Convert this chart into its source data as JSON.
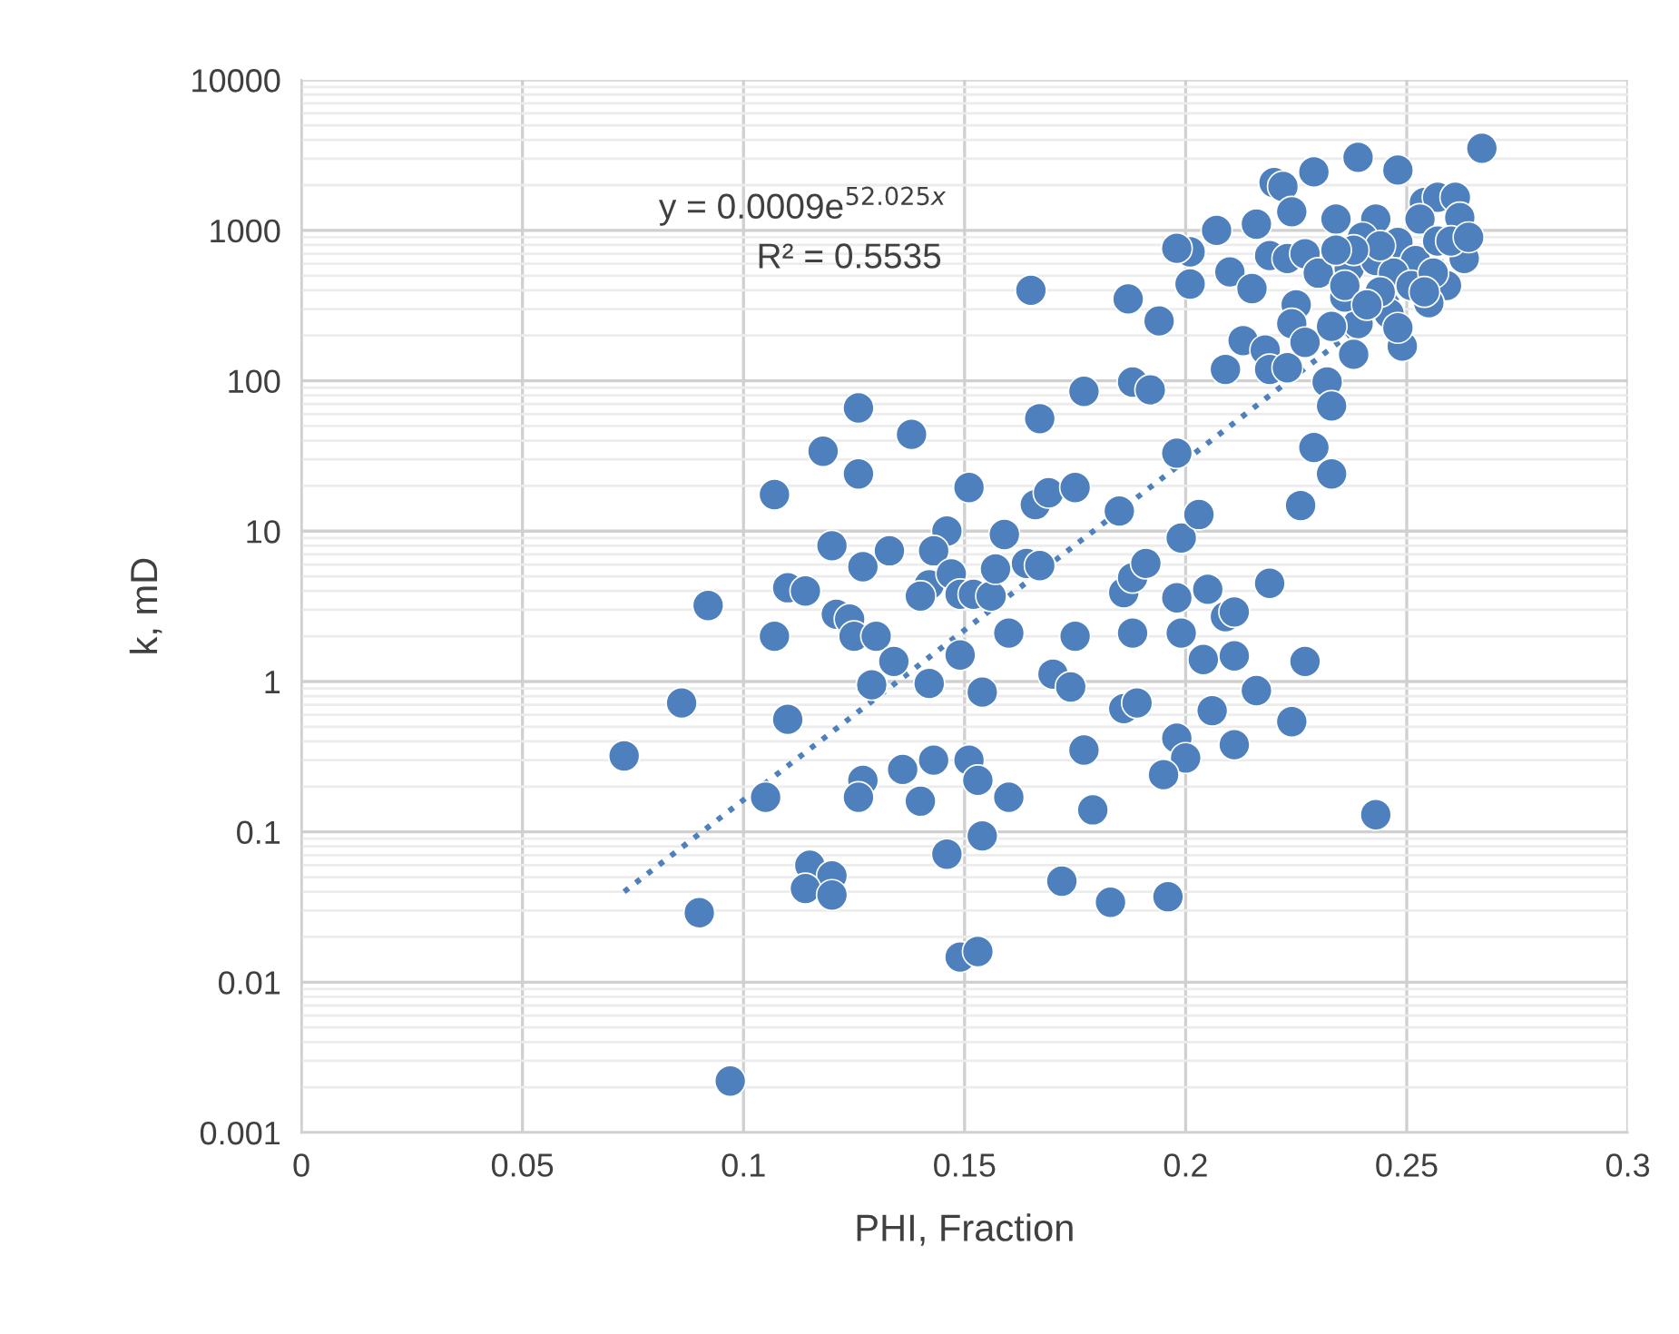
{
  "chart_data": {
    "type": "scatter",
    "xlabel": "PHI, Fraction",
    "ylabel": "k, mD",
    "annotations": [
      "y = 0.0009e$^{52.025x}$",
      "R² = 0.5535"
    ],
    "log": "y",
    "grid": true,
    "legend": false,
    "marker": "circle",
    "xlim": [
      0,
      0.3
    ],
    "xticks": [
      0,
      0.05,
      0.1,
      0.15,
      0.2,
      0.25,
      0.3
    ],
    "ylim": [
      0.001,
      10000
    ],
    "yticks": [
      0.001,
      0.01,
      0.1,
      1,
      10,
      100,
      1000,
      10000
    ],
    "series": [
      {
        "color": "#4e80bd",
        "x": [
          0.073,
          0.086,
          0.092,
          0.09,
          0.097,
          0.107,
          0.107,
          0.11,
          0.114,
          0.11,
          0.105,
          0.118,
          0.126,
          0.126,
          0.12,
          0.127,
          0.133,
          0.121,
          0.124,
          0.125,
          0.13,
          0.134,
          0.129,
          0.142,
          0.127,
          0.126,
          0.136,
          0.143,
          0.14,
          0.151,
          0.153,
          0.16,
          0.154,
          0.146,
          0.115,
          0.12,
          0.114,
          0.12,
          0.149,
          0.153,
          0.138,
          0.151,
          0.146,
          0.143,
          0.142,
          0.14,
          0.147,
          0.149,
          0.152,
          0.156,
          0.157,
          0.159,
          0.16,
          0.149,
          0.154,
          0.164,
          0.167,
          0.166,
          0.169,
          0.175,
          0.167,
          0.177,
          0.165,
          0.175,
          0.17,
          0.174,
          0.177,
          0.179,
          0.172,
          0.183,
          0.185,
          0.186,
          0.188,
          0.191,
          0.186,
          0.189,
          0.188,
          0.187,
          0.188,
          0.192,
          0.194,
          0.198,
          0.199,
          0.203,
          0.198,
          0.199,
          0.198,
          0.2,
          0.195,
          0.196,
          0.205,
          0.204,
          0.206,
          0.209,
          0.211,
          0.211,
          0.211,
          0.216,
          0.219,
          0.224,
          0.227,
          0.226,
          0.229,
          0.233,
          0.243,
          0.201,
          0.198,
          0.201,
          0.207,
          0.21,
          0.215,
          0.216,
          0.22,
          0.222,
          0.224,
          0.229,
          0.239,
          0.248,
          0.267,
          0.254,
          0.257,
          0.261,
          0.262,
          0.263,
          0.259,
          0.255,
          0.249,
          0.246,
          0.239,
          0.238,
          0.236,
          0.225,
          0.224,
          0.213,
          0.218,
          0.209,
          0.219,
          0.223,
          0.227,
          0.233,
          0.232,
          0.233,
          0.219,
          0.223,
          0.227,
          0.234,
          0.243,
          0.237,
          0.243,
          0.248,
          0.252,
          0.247,
          0.23,
          0.253,
          0.257,
          0.236,
          0.251,
          0.24,
          0.244,
          0.238,
          0.256,
          0.26,
          0.264,
          0.244,
          0.241,
          0.248,
          0.254,
          0.234
        ],
        "values": [
          0.32,
          0.72,
          3.2,
          0.029,
          0.0022,
          17.5,
          2.0,
          4.2,
          4.0,
          0.56,
          0.17,
          34,
          24,
          66,
          8.0,
          5.8,
          7.4,
          2.8,
          2.6,
          2.0,
          2.0,
          1.36,
          0.95,
          0.97,
          0.22,
          0.17,
          0.26,
          0.3,
          0.16,
          0.3,
          0.22,
          0.17,
          0.094,
          0.071,
          0.06,
          0.051,
          0.042,
          0.038,
          0.0147,
          0.016,
          44,
          19.5,
          10,
          7.4,
          4.4,
          3.7,
          5.2,
          3.8,
          3.8,
          3.7,
          5.6,
          9.5,
          2.1,
          1.5,
          0.85,
          6.1,
          5.9,
          15,
          18,
          19.5,
          56,
          85,
          400,
          2.0,
          1.12,
          0.92,
          0.35,
          0.14,
          0.047,
          0.034,
          13.6,
          3.9,
          4.9,
          6.1,
          0.66,
          0.72,
          2.1,
          350,
          98,
          87,
          250,
          33,
          9.0,
          12.9,
          3.6,
          2.1,
          0.42,
          0.31,
          0.24,
          0.037,
          4.1,
          1.4,
          0.64,
          2.7,
          2.9,
          1.48,
          0.38,
          0.87,
          4.5,
          0.54,
          1.36,
          14.8,
          36,
          24,
          0.13,
          720,
          760,
          440,
          1000,
          530,
          410,
          1100,
          2080,
          1960,
          1330,
          2450,
          3060,
          2520,
          3520,
          1530,
          1660,
          1660,
          1220,
          650,
          430,
          330,
          170,
          280,
          240,
          150,
          360,
          320,
          240,
          185,
          160,
          119,
          119,
          122,
          180,
          230,
          98,
          68,
          680,
          650,
          700,
          1190,
          1190,
          560,
          630,
          830,
          630,
          520,
          520,
          1190,
          850,
          430,
          430,
          900,
          790,
          740,
          520,
          850,
          900,
          390,
          320,
          225,
          390,
          740
        ]
      },
      {
        "type": "line",
        "color": "#4e80bd",
        "line_style": "dotted",
        "marker": "none",
        "x": [
          0.073,
          0.267
        ],
        "values": [
          0.04,
          970
        ]
      }
    ]
  }
}
